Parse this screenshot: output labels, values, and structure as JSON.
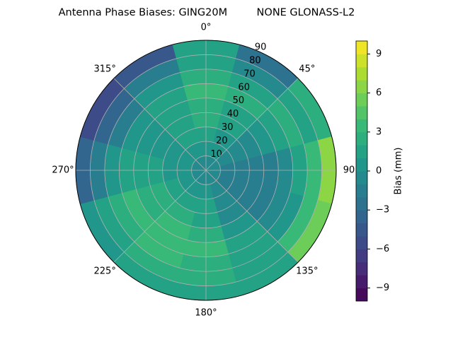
{
  "chart_data": {
    "type": "polar-contour",
    "title": "Antenna Phase Biases: GING20M         NONE GLONASS-L2",
    "colorbar_label": "Bias (mm)",
    "colormap": "viridis",
    "clim": [
      -10,
      10
    ],
    "cticks": [
      {
        "value": -9,
        "label": "−9"
      },
      {
        "value": -6,
        "label": "−6"
      },
      {
        "value": -3,
        "label": "−3"
      },
      0,
      3,
      6,
      9
    ],
    "rlim": [
      0,
      90
    ],
    "rticks": [
      10,
      20,
      30,
      40,
      50,
      60,
      70,
      80,
      90
    ],
    "thetaticks": [
      {
        "value": 0,
        "label": "0°"
      },
      {
        "value": 45,
        "label": "45°"
      },
      {
        "value": 90,
        "label": "90"
      },
      {
        "value": 135,
        "label": "135°"
      },
      {
        "value": 180,
        "label": "180°"
      },
      {
        "value": 225,
        "label": "225°"
      },
      {
        "value": 270,
        "label": "270°"
      },
      {
        "value": 315,
        "label": "315°"
      }
    ],
    "theta": [
      0,
      30,
      60,
      90,
      120,
      150,
      180,
      210,
      240,
      270,
      300,
      330
    ],
    "z": [
      [
        -1,
        -1,
        -1,
        -1,
        -1,
        -1,
        -1,
        -1,
        -1,
        -1,
        -1,
        -1
      ],
      [
        0,
        0,
        -1,
        -2,
        -2,
        -1,
        0,
        0,
        0,
        0,
        0,
        0
      ],
      [
        1,
        0,
        -1,
        -2,
        -2,
        -1,
        1,
        1,
        1,
        0,
        0,
        1
      ],
      [
        2,
        1,
        -1,
        -2,
        -2,
        -1,
        1,
        2,
        2,
        1,
        0,
        1
      ],
      [
        2,
        1,
        0,
        -2,
        -2,
        0,
        2,
        3,
        2,
        1,
        0,
        1
      ],
      [
        3,
        2,
        1,
        -1,
        -1,
        1,
        3,
        3,
        3,
        1,
        0,
        1
      ],
      [
        2,
        1,
        2,
        1,
        0,
        1,
        2,
        3,
        2,
        0,
        -2,
        0
      ],
      [
        1,
        -1,
        1,
        3,
        3,
        1,
        2,
        2,
        1,
        -2,
        -4,
        -2
      ],
      [
        1,
        -3,
        2,
        6,
        5,
        1,
        1,
        1,
        0,
        -4,
        -6,
        -5
      ]
    ]
  }
}
